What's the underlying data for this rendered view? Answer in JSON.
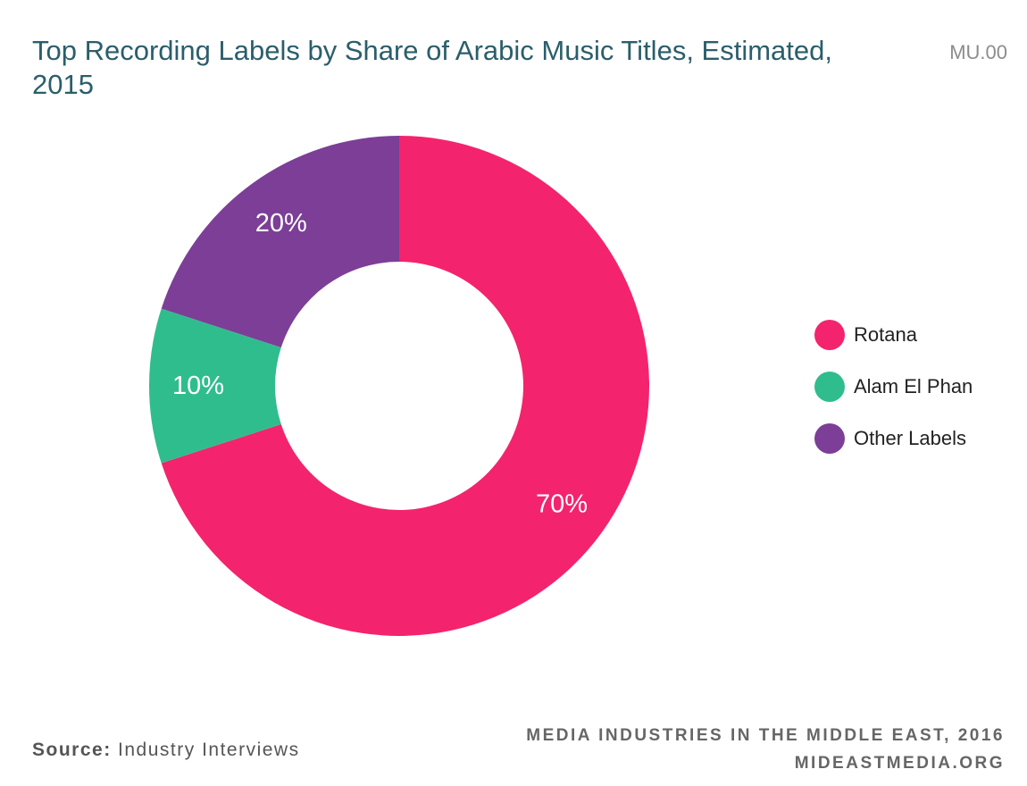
{
  "header": {
    "title": "Top Recording Labels by Share of Arabic Music Titles, Estimated, 2015",
    "code": "MU.00"
  },
  "chart_data": {
    "type": "pie",
    "title": "Top Recording Labels by Share of Arabic Music Titles, Estimated, 2015",
    "donut": true,
    "unit": "%",
    "categories": [
      "Rotana",
      "Alam El Phan",
      "Other Labels"
    ],
    "values": [
      70,
      10,
      20
    ],
    "value_labels": [
      "70%",
      "10%",
      "20%"
    ],
    "colors": [
      "#f4236d",
      "#30bd8d",
      "#7c3e96"
    ],
    "legend_position": "right"
  },
  "footer": {
    "source_key": "Source:",
    "source_value": "Industry Interviews",
    "publication_line1": "MEDIA INDUSTRIES IN THE MIDDLE EAST, 2016",
    "publication_line2": "MIDEASTMEDIA.ORG"
  }
}
